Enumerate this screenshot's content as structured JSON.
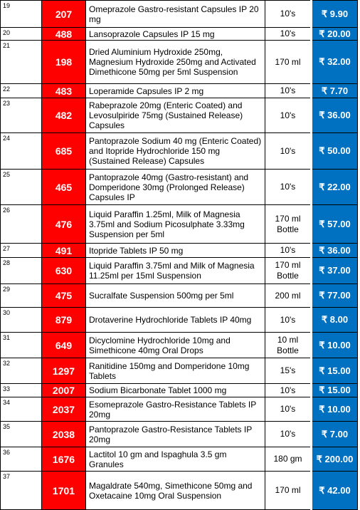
{
  "table": {
    "rows": [
      [
        "19",
        "207",
        "Omeprazole Gastro-resistant Capsules IP 20 mg",
        "10's",
        "₹ 9.90"
      ],
      [
        "20",
        "488",
        "Lansoprazole Capsules IP 15 mg",
        "10's",
        "₹ 20.00"
      ],
      [
        "21",
        "198",
        "Dried Aluminium Hydroxide 250mg, Magnesium Hydroxide 250mg and Activated Dimethicone 50mg per 5ml Suspension",
        "170 ml",
        "₹ 32.00"
      ],
      [
        "22",
        "483",
        "Loperamide Capsules IP 2 mg",
        "10's",
        "₹ 7.70"
      ],
      [
        "23",
        "482",
        "Rabeprazole 20mg (Enteric Coated) and Levosulpiride 75mg (Sustained Release) Capsules",
        "10's",
        "₹ 36.00"
      ],
      [
        "24",
        "685",
        "Pantoprazole Sodium 40 mg (Enteric Coated) and Itopride Hydrochloride 150 mg (Sustained Release) Capsules",
        "10's",
        "₹ 50.00"
      ],
      [
        "25",
        "465",
        "Pantoprazole 40mg (Gastro-resistant) and Domperidone 30mg (Prolonged Release) Capsules IP",
        "10's",
        "₹ 22.00"
      ],
      [
        "26",
        "476",
        "Liquid Paraffin 1.25ml, Milk of Magnesia 3.75ml and Sodium Picosulphate 3.33mg Suspension per 5ml",
        "170 ml Bottle",
        "₹ 57.00"
      ],
      [
        "27",
        "491",
        "Itopride Tablets IP 50 mg",
        "10's",
        "₹ 36.00"
      ],
      [
        "28",
        "630",
        "Liquid Paraffin 3.75ml and Milk of Magnesia 11.25ml per 15ml Suspension",
        "170 ml Bottle",
        "₹ 37.00"
      ],
      [
        "29",
        "475",
        "Sucralfate Suspension 500mg per 5ml",
        "200 ml",
        "₹ 77.00"
      ],
      [
        "30",
        "879",
        "Drotaverine Hydrochloride Tablets IP 40mg",
        "10's",
        "₹ 8.00"
      ],
      [
        "31",
        "649",
        "Dicyclomine Hydrochloride 10mg and Simethicone 40mg Oral Drops",
        "10 ml Bottle",
        "₹ 10.00"
      ],
      [
        "32",
        "1297",
        "Ranitidine 150mg and Domperidone 10mg Tablets",
        "15's",
        "₹ 15.00"
      ],
      [
        "33",
        "2007",
        "Sodium Bicarbonate Tablet 1000 mg",
        "10's",
        "₹ 15.00"
      ],
      [
        "34",
        "2037",
        "Esomeprazole Gastro-Resistance Tablets IP 20mg",
        "10's",
        "₹ 10.00"
      ],
      [
        "35",
        "2038",
        "Pantoprazole Gastro-Resistance Tablets IP 20mg",
        "10's",
        "₹ 7.00"
      ],
      [
        "36",
        "1676",
        "Lactitol 10 gm and Ispaghula 3.5 gm Granules",
        "180 gm",
        "₹ 200.00"
      ],
      [
        "37",
        "1701",
        "Magaldrate 540mg, Simethicone 50mg and Oxetacaine 10mg Oral Suspension",
        "170 ml",
        "₹ 42.00"
      ]
    ]
  }
}
